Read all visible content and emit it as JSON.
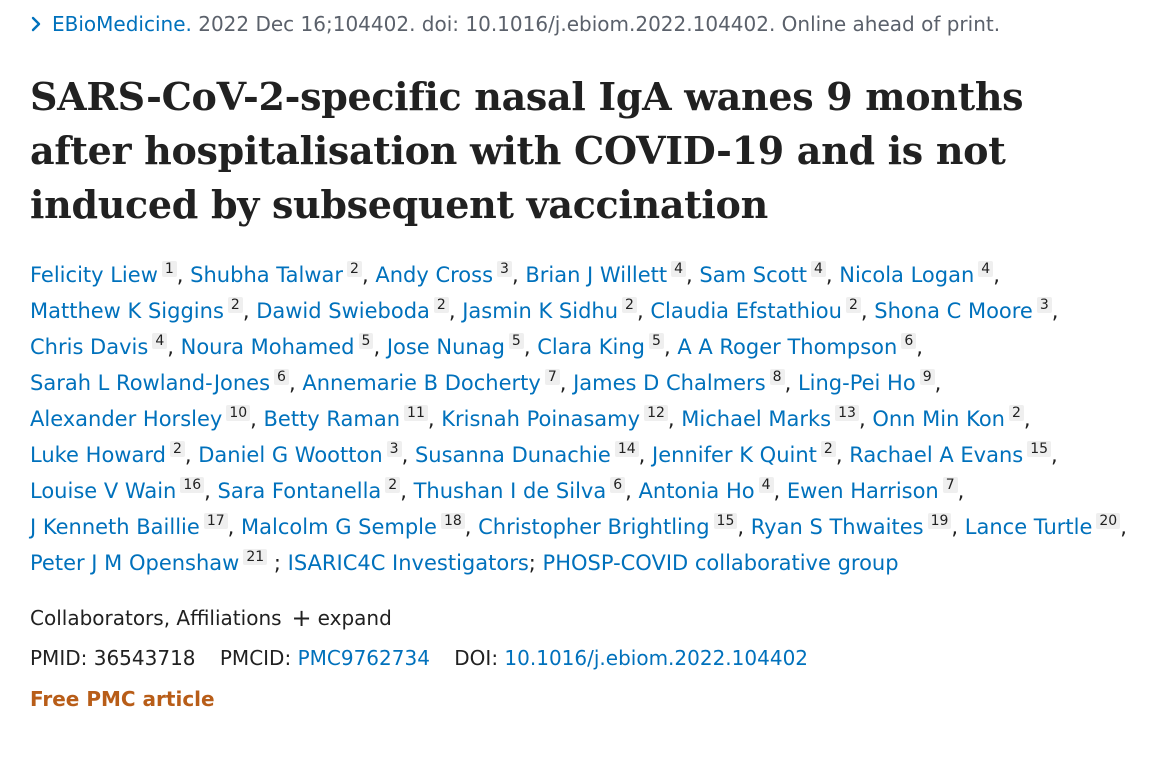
{
  "journal": {
    "name": "EBioMedicine.",
    "citation": "2022 Dec 16;104402. doi: 10.1016/j.ebiom.2022.104402. Online ahead of print."
  },
  "title": "SARS-CoV-2-specific nasal IgA wanes 9 months after hospitalisation with COVID-19 and is not induced by subsequent vaccination",
  "authors": [
    {
      "name": "Felicity Liew",
      "aff": "1"
    },
    {
      "name": "Shubha Talwar",
      "aff": "2"
    },
    {
      "name": "Andy Cross",
      "aff": "3"
    },
    {
      "name": "Brian J Willett",
      "aff": "4"
    },
    {
      "name": "Sam Scott",
      "aff": "4"
    },
    {
      "name": "Nicola Logan",
      "aff": "4"
    },
    {
      "name": "Matthew K Siggins",
      "aff": "2"
    },
    {
      "name": "Dawid Swieboda",
      "aff": "2"
    },
    {
      "name": "Jasmin K Sidhu",
      "aff": "2"
    },
    {
      "name": "Claudia Efstathiou",
      "aff": "2"
    },
    {
      "name": "Shona C Moore",
      "aff": "3"
    },
    {
      "name": "Chris Davis",
      "aff": "4"
    },
    {
      "name": "Noura Mohamed",
      "aff": "5"
    },
    {
      "name": "Jose Nunag",
      "aff": "5"
    },
    {
      "name": "Clara King",
      "aff": "5"
    },
    {
      "name": "A A Roger Thompson",
      "aff": "6"
    },
    {
      "name": "Sarah L Rowland-Jones",
      "aff": "6"
    },
    {
      "name": "Annemarie B Docherty",
      "aff": "7"
    },
    {
      "name": "James D Chalmers",
      "aff": "8"
    },
    {
      "name": "Ling-Pei Ho",
      "aff": "9"
    },
    {
      "name": "Alexander Horsley",
      "aff": "10"
    },
    {
      "name": "Betty Raman",
      "aff": "11"
    },
    {
      "name": "Krisnah Poinasamy",
      "aff": "12"
    },
    {
      "name": "Michael Marks",
      "aff": "13"
    },
    {
      "name": "Onn Min Kon",
      "aff": "2"
    },
    {
      "name": "Luke Howard",
      "aff": "2"
    },
    {
      "name": "Daniel G Wootton",
      "aff": "3"
    },
    {
      "name": "Susanna Dunachie",
      "aff": "14"
    },
    {
      "name": "Jennifer K Quint",
      "aff": "2"
    },
    {
      "name": "Rachael A Evans",
      "aff": "15"
    },
    {
      "name": "Louise V Wain",
      "aff": "16"
    },
    {
      "name": "Sara Fontanella",
      "aff": "2"
    },
    {
      "name": "Thushan I de Silva",
      "aff": "6"
    },
    {
      "name": "Antonia Ho",
      "aff": "4"
    },
    {
      "name": "Ewen Harrison",
      "aff": "7"
    },
    {
      "name": "J Kenneth Baillie",
      "aff": "17"
    },
    {
      "name": "Malcolm G Semple",
      "aff": "18"
    },
    {
      "name": "Christopher Brightling",
      "aff": "15"
    },
    {
      "name": "Ryan S Thwaites",
      "aff": "19"
    },
    {
      "name": "Lance Turtle",
      "aff": "20"
    },
    {
      "name": "Peter J M Openshaw",
      "aff": "21"
    }
  ],
  "groups": {
    "separator": ";",
    "isaric": "ISARIC4C Investigators",
    "phosp": "PHOSP-COVID collaborative group"
  },
  "extra": {
    "label": "Collaborators, Affiliations",
    "expand_icon": "plus-icon",
    "expand_label": "expand"
  },
  "ids": {
    "pmid_label": "PMID:",
    "pmid": "36543718",
    "pmcid_label": "PMCID:",
    "pmcid": "PMC9762734",
    "doi_label": "DOI:",
    "doi": "10.1016/j.ebiom.2022.104402"
  },
  "free_article": "Free PMC article",
  "colors": {
    "link": "#0071bc",
    "free_article": "#b85d18",
    "text": "#212121",
    "muted": "#5b616b"
  }
}
